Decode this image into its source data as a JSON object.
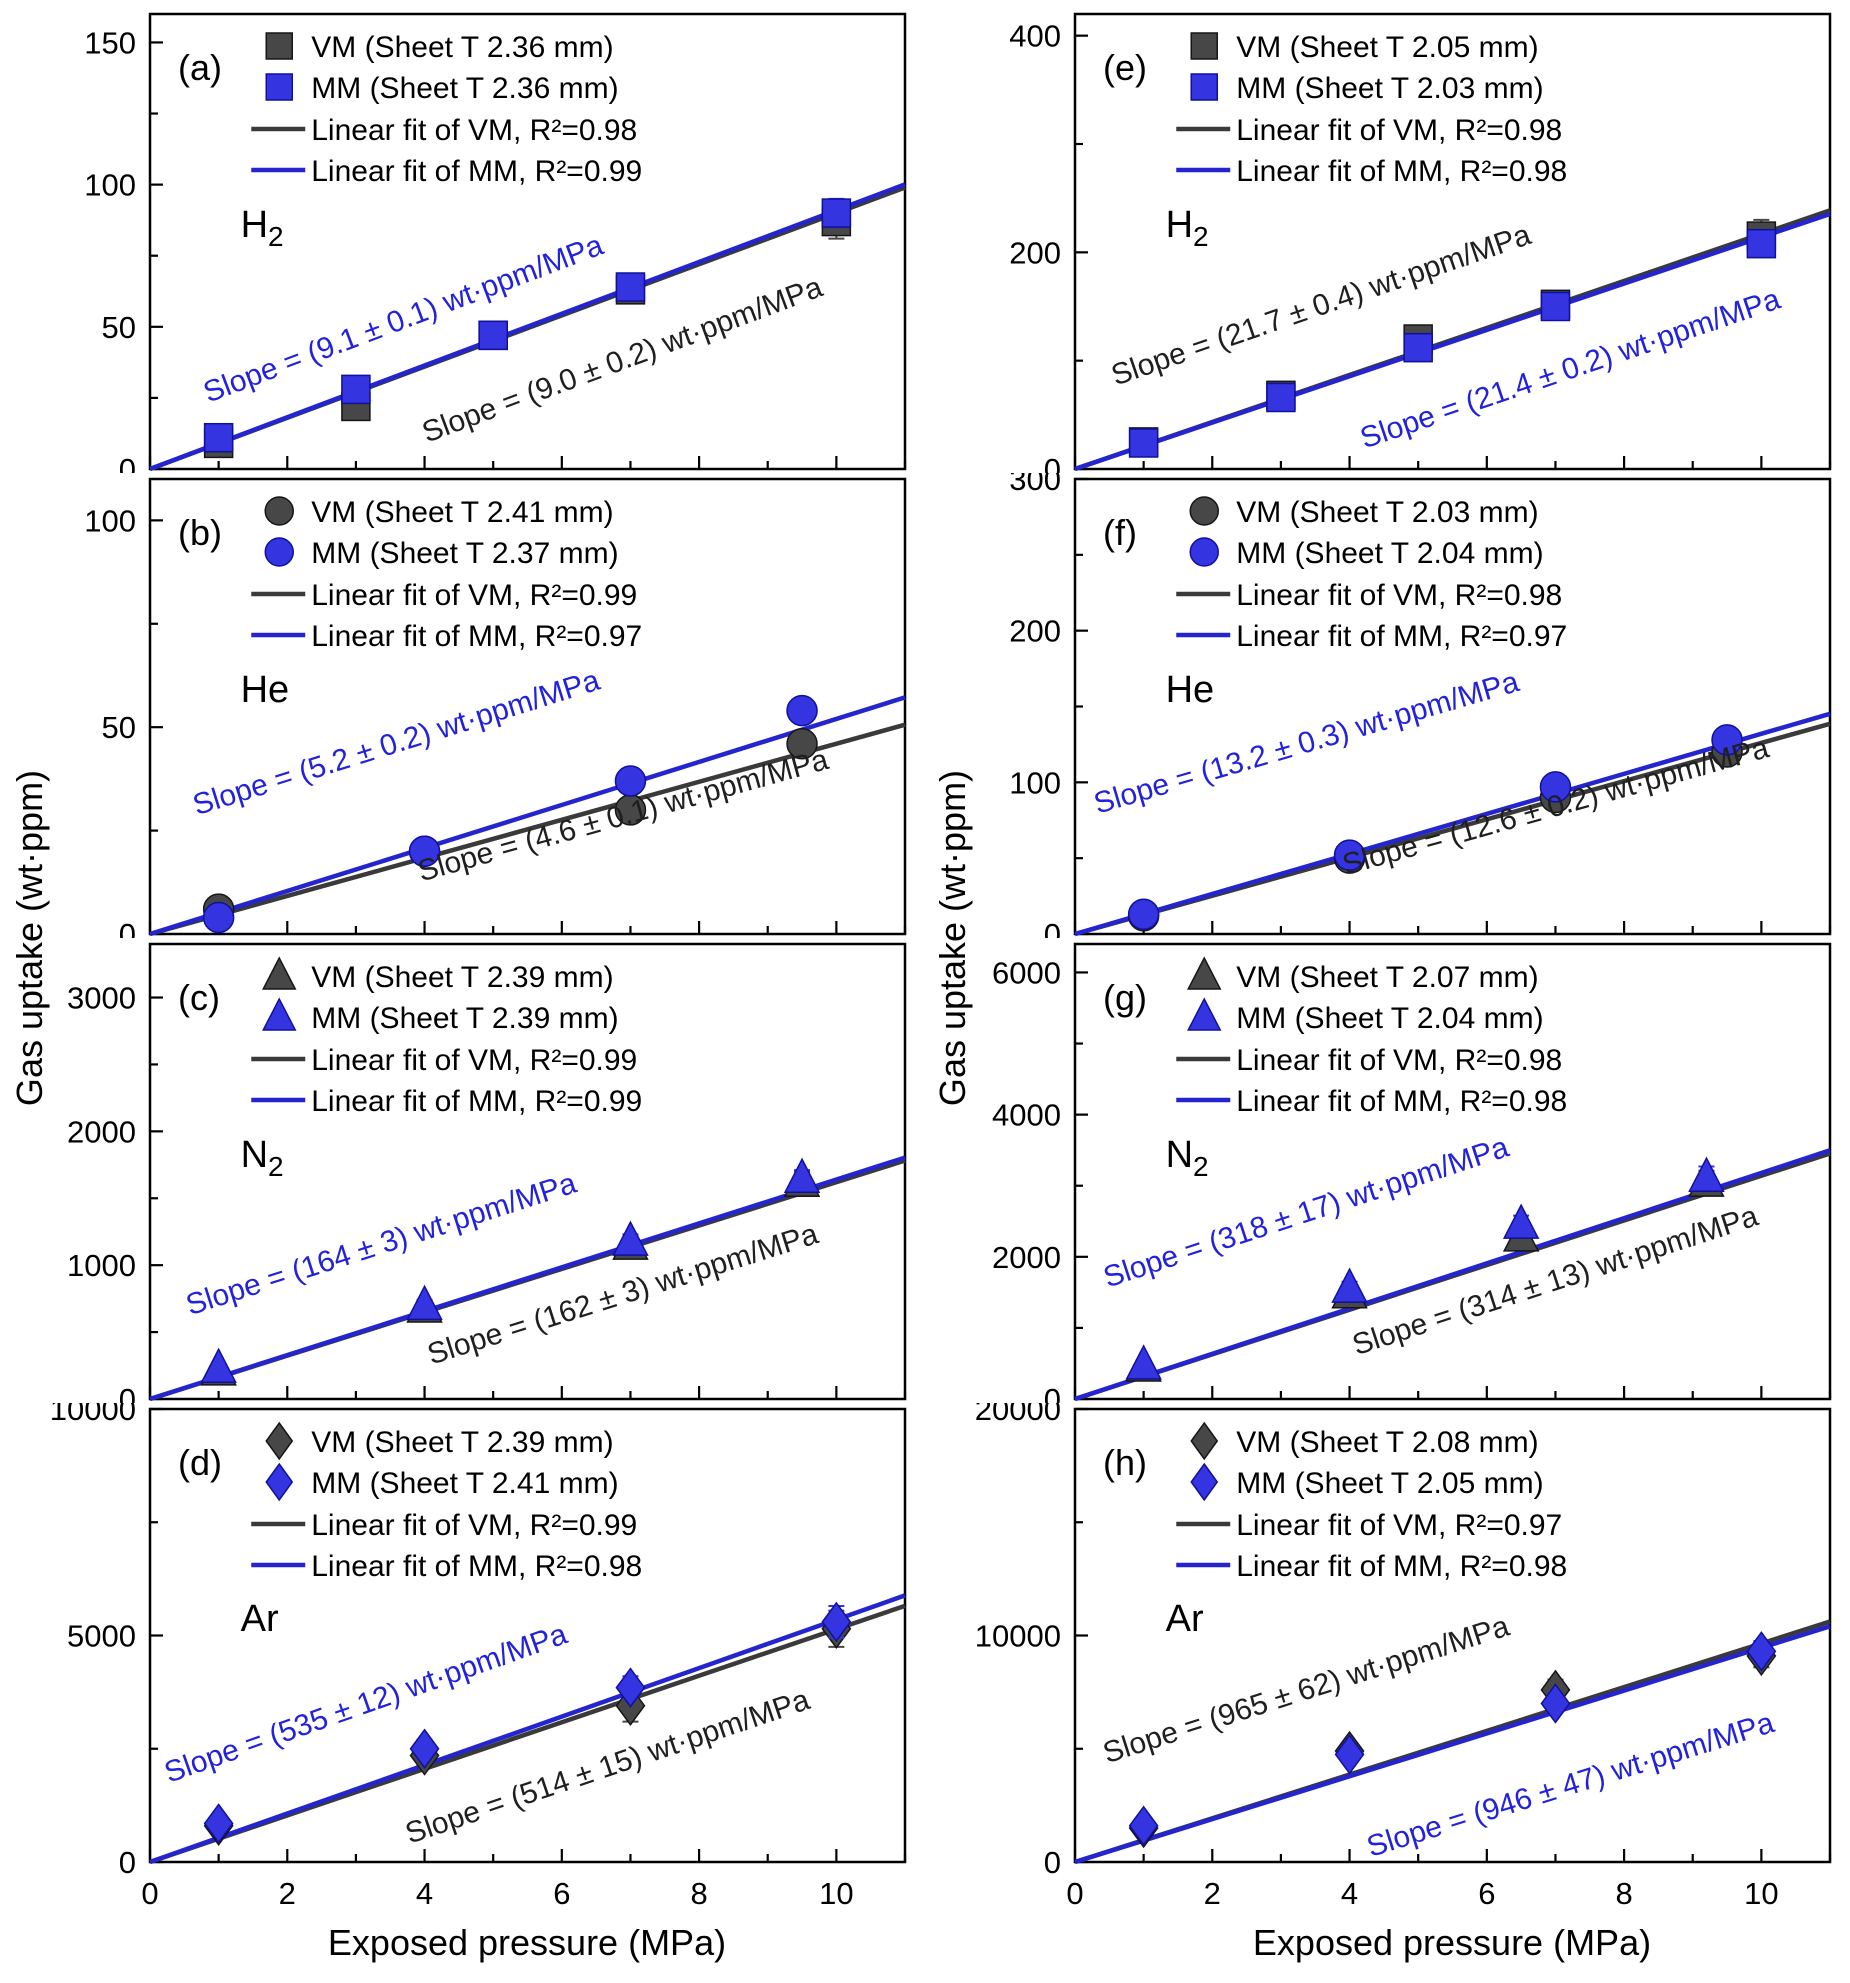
{
  "figure": {
    "xlabel": "Exposed pressure (MPa)",
    "ylabel": "Gas uptake (wt·ppm)"
  },
  "colors": {
    "vm": "#474747",
    "vm_edge": "#161616",
    "vm_line": "#3a3a3a",
    "vm_text": "#1f1f1f",
    "mm": "#3434e0",
    "mm_edge": "#10109e",
    "mm_line": "#2525cf",
    "mm_text": "#2222dd"
  },
  "chart_data": [
    {
      "id": "a",
      "type": "scatter",
      "panel_label": "(a)",
      "gas": "H",
      "gas_sub": "2",
      "marker": "square",
      "xlim": [
        0,
        11
      ],
      "ylim": [
        0,
        160
      ],
      "xticks": [
        0,
        2,
        4,
        6,
        8,
        10
      ],
      "yticks": [
        0,
        50,
        100,
        150
      ],
      "legend": {
        "vm_label": "VM (Sheet T 2.36 mm)",
        "mm_label": "MM (Sheet T 2.36 mm)",
        "vm_fit": "Linear fit of VM, R²=0.98",
        "mm_fit": "Linear fit of MM, R²=0.99"
      },
      "x": [
        1,
        3,
        5,
        7,
        10
      ],
      "series": [
        {
          "name": "VM",
          "values": [
            9,
            22,
            47,
            63,
            87
          ],
          "err": [
            3,
            3,
            3,
            3,
            6
          ]
        },
        {
          "name": "MM",
          "values": [
            11,
            28,
            47,
            64,
            90
          ],
          "err": [
            3,
            3,
            3,
            3,
            5
          ]
        }
      ],
      "fit": {
        "vm_slope": 9.0,
        "mm_slope": 9.1
      },
      "annotations": [
        {
          "series": "mm",
          "text": "Slope = (9.1 ± 0.1) wt·ppm/MPa",
          "x": 0.34,
          "y": 0.69
        },
        {
          "series": "vm",
          "text": "Slope = (9.0 ± 0.2) wt·ppm/MPa",
          "x": 0.63,
          "y": 0.78
        }
      ]
    },
    {
      "id": "b",
      "type": "scatter",
      "panel_label": "(b)",
      "gas": "He",
      "gas_sub": "",
      "marker": "circle",
      "xlim": [
        0,
        11
      ],
      "ylim": [
        0,
        110
      ],
      "xticks": [
        0,
        2,
        4,
        6,
        8,
        10
      ],
      "yticks": [
        0,
        50,
        100
      ],
      "legend": {
        "vm_label": "VM (Sheet T 2.41 mm)",
        "mm_label": "MM (Sheet T 2.37 mm)",
        "vm_fit": "Linear fit of VM, R²=0.99",
        "mm_fit": "Linear fit of MM, R²=0.97"
      },
      "x": [
        1,
        4,
        7,
        9.5
      ],
      "series": [
        {
          "name": "VM",
          "values": [
            6,
            20,
            30,
            46
          ],
          "err": [
            2,
            2,
            2,
            3
          ]
        },
        {
          "name": "MM",
          "values": [
            4,
            20,
            37,
            54
          ],
          "err": [
            2,
            2,
            2,
            3
          ]
        }
      ],
      "fit": {
        "vm_slope": 4.6,
        "mm_slope": 5.2
      },
      "annotations": [
        {
          "series": "mm",
          "text": "Slope = (5.2 ± 0.2) wt·ppm/MPa",
          "x": 0.33,
          "y": 0.6
        },
        {
          "series": "vm",
          "text": "Slope = (4.6 ± 0.1) wt·ppm/MPa",
          "x": 0.63,
          "y": 0.76
        }
      ]
    },
    {
      "id": "c",
      "type": "scatter",
      "panel_label": "(c)",
      "gas": "N",
      "gas_sub": "2",
      "marker": "triangle",
      "xlim": [
        0,
        11
      ],
      "ylim": [
        0,
        3400
      ],
      "xticks": [
        0,
        2,
        4,
        6,
        8,
        10
      ],
      "yticks": [
        0,
        1000,
        2000,
        3000
      ],
      "legend": {
        "vm_label": "VM (Sheet T 2.39 mm)",
        "mm_label": "MM (Sheet T 2.39 mm)",
        "vm_fit": "Linear fit of VM, R²=0.99",
        "mm_fit": "Linear fit of MM, R²=0.99"
      },
      "x": [
        1,
        4,
        7,
        9.5
      ],
      "series": [
        {
          "name": "VM",
          "values": [
            210,
            680,
            1150,
            1620
          ],
          "err": [
            30,
            40,
            50,
            80
          ]
        },
        {
          "name": "MM",
          "values": [
            230,
            700,
            1180,
            1650
          ],
          "err": [
            30,
            40,
            50,
            60
          ]
        }
      ],
      "fit": {
        "vm_slope": 162,
        "mm_slope": 164
      },
      "annotations": [
        {
          "series": "mm",
          "text": "Slope = (164 ± 3) wt·ppm/MPa",
          "x": 0.31,
          "y": 0.68
        },
        {
          "series": "vm",
          "text": "Slope = (162 ± 3) wt·ppm/MPa",
          "x": 0.63,
          "y": 0.79
        }
      ]
    },
    {
      "id": "d",
      "type": "scatter",
      "panel_label": "(d)",
      "gas": "Ar",
      "gas_sub": "",
      "marker": "diamond",
      "xlim": [
        0,
        11
      ],
      "ylim": [
        0,
        10000
      ],
      "xticks": [
        0,
        2,
        4,
        6,
        8,
        10
      ],
      "yticks": [
        0,
        5000,
        10000
      ],
      "legend": {
        "vm_label": "VM (Sheet T 2.39 mm)",
        "mm_label": "MM (Sheet T 2.41 mm)",
        "vm_fit": "Linear fit of VM, R²=0.99",
        "mm_fit": "Linear fit of MM, R²=0.98"
      },
      "x": [
        1,
        4,
        7,
        10
      ],
      "series": [
        {
          "name": "VM",
          "values": [
            800,
            2350,
            3450,
            5150
          ],
          "err": [
            150,
            200,
            350,
            400
          ]
        },
        {
          "name": "MM",
          "values": [
            850,
            2500,
            3850,
            5300
          ],
          "err": [
            150,
            200,
            250,
            350
          ]
        }
      ],
      "fit": {
        "vm_slope": 514,
        "mm_slope": 535
      },
      "annotations": [
        {
          "series": "mm",
          "text": "Slope = (535 ± 12) wt·ppm/MPa",
          "x": 0.29,
          "y": 0.67
        },
        {
          "series": "vm",
          "text": "Slope = (514 ± 15) wt·ppm/MPa",
          "x": 0.61,
          "y": 0.81
        }
      ]
    },
    {
      "id": "e",
      "type": "scatter",
      "panel_label": "(e)",
      "gas": "H",
      "gas_sub": "2",
      "marker": "square",
      "xlim": [
        0,
        11
      ],
      "ylim": [
        0,
        420
      ],
      "xticks": [
        0,
        2,
        4,
        6,
        8,
        10
      ],
      "yticks": [
        0,
        200,
        400
      ],
      "legend": {
        "vm_label": "VM (Sheet T 2.05 mm)",
        "mm_label": "MM (Sheet T 2.03 mm)",
        "vm_fit": "Linear fit of VM, R²=0.98",
        "mm_fit": "Linear fit of MM, R²=0.98"
      },
      "x": [
        1,
        3,
        5,
        7,
        10
      ],
      "series": [
        {
          "name": "VM",
          "values": [
            25,
            68,
            120,
            152,
            215
          ],
          "err": [
            5,
            8,
            10,
            10,
            15
          ]
        },
        {
          "name": "MM",
          "values": [
            24,
            66,
            112,
            150,
            208
          ],
          "err": [
            5,
            8,
            10,
            10,
            12
          ]
        }
      ],
      "fit": {
        "vm_slope": 21.7,
        "mm_slope": 21.4
      },
      "annotations": [
        {
          "series": "vm",
          "text": "Slope = (21.7 ± 0.4) wt·ppm/MPa",
          "x": 0.33,
          "y": 0.66
        },
        {
          "series": "mm",
          "text": "Slope = (21.4 ± 0.2) wt·ppm/MPa",
          "x": 0.66,
          "y": 0.8
        }
      ]
    },
    {
      "id": "f",
      "type": "scatter",
      "panel_label": "(f)",
      "gas": "He",
      "gas_sub": "",
      "marker": "circle",
      "xlim": [
        0,
        11
      ],
      "ylim": [
        0,
        300
      ],
      "xticks": [
        0,
        2,
        4,
        6,
        8,
        10
      ],
      "yticks": [
        0,
        100,
        200,
        300
      ],
      "legend": {
        "vm_label": "VM (Sheet T 2.03 mm)",
        "mm_label": "MM (Sheet T 2.04 mm)",
        "vm_fit": "Linear fit of VM, R²=0.98",
        "mm_fit": "Linear fit of MM, R²=0.97"
      },
      "x": [
        1,
        4,
        7,
        9.5
      ],
      "series": [
        {
          "name": "VM",
          "values": [
            12,
            50,
            90,
            120
          ],
          "err": [
            3,
            5,
            6,
            8
          ]
        },
        {
          "name": "MM",
          "values": [
            13,
            52,
            97,
            128
          ],
          "err": [
            3,
            5,
            6,
            8
          ]
        }
      ],
      "fit": {
        "vm_slope": 12.6,
        "mm_slope": 13.2
      },
      "annotations": [
        {
          "series": "mm",
          "text": "Slope = (13.2 ± 0.3) wt·ppm/MPa",
          "x": 0.31,
          "y": 0.6
        },
        {
          "series": "vm",
          "text": "Slope = (12.6 ± 0.2) wt·ppm/MPa",
          "x": 0.64,
          "y": 0.74
        }
      ]
    },
    {
      "id": "g",
      "type": "scatter",
      "panel_label": "(g)",
      "gas": "N",
      "gas_sub": "2",
      "marker": "triangle",
      "xlim": [
        0,
        11
      ],
      "ylim": [
        0,
        6400
      ],
      "xticks": [
        0,
        2,
        4,
        6,
        8,
        10
      ],
      "yticks": [
        0,
        2000,
        4000,
        6000
      ],
      "legend": {
        "vm_label": "VM (Sheet T 2.07 mm)",
        "mm_label": "MM (Sheet T 2.04 mm)",
        "vm_fit": "Linear fit of VM, R²=0.98",
        "mm_fit": "Linear fit of MM, R²=0.98"
      },
      "x": [
        1,
        4,
        6.5,
        9.2
      ],
      "series": [
        {
          "name": "VM",
          "values": [
            450,
            1480,
            2280,
            3050
          ],
          "err": [
            60,
            90,
            120,
            160
          ]
        },
        {
          "name": "MM",
          "values": [
            480,
            1560,
            2460,
            3120
          ],
          "err": [
            60,
            90,
            120,
            150
          ]
        }
      ],
      "fit": {
        "vm_slope": 314,
        "mm_slope": 318
      },
      "annotations": [
        {
          "series": "mm",
          "text": "Slope = (318 ± 17) wt·ppm/MPa",
          "x": 0.31,
          "y": 0.61
        },
        {
          "series": "vm",
          "text": "Slope = (314 ± 13) wt·ppm/MPa",
          "x": 0.64,
          "y": 0.76
        }
      ]
    },
    {
      "id": "h",
      "type": "scatter",
      "panel_label": "(h)",
      "gas": "Ar",
      "gas_sub": "",
      "marker": "diamond",
      "xlim": [
        0,
        11
      ],
      "ylim": [
        0,
        20000
      ],
      "xticks": [
        0,
        2,
        4,
        6,
        8,
        10
      ],
      "yticks": [
        0,
        10000,
        20000
      ],
      "legend": {
        "vm_label": "VM (Sheet T 2.08 mm)",
        "mm_label": "MM (Sheet T 2.05 mm)",
        "vm_fit": "Linear fit of VM, R²=0.97",
        "mm_fit": "Linear fit of MM, R²=0.98"
      },
      "x": [
        1,
        4,
        7,
        10
      ],
      "series": [
        {
          "name": "VM",
          "values": [
            1500,
            4900,
            7600,
            9100
          ],
          "err": [
            250,
            350,
            450,
            500
          ]
        },
        {
          "name": "MM",
          "values": [
            1600,
            4750,
            7000,
            9300
          ],
          "err": [
            250,
            350,
            400,
            450
          ]
        }
      ],
      "fit": {
        "vm_slope": 965,
        "mm_slope": 946
      },
      "annotations": [
        {
          "series": "vm",
          "text": "Slope = (965 ± 62) wt·ppm/MPa",
          "x": 0.31,
          "y": 0.64
        },
        {
          "series": "mm",
          "text": "Slope = (946 ± 47) wt·ppm/MPa",
          "x": 0.66,
          "y": 0.85
        }
      ]
    }
  ]
}
